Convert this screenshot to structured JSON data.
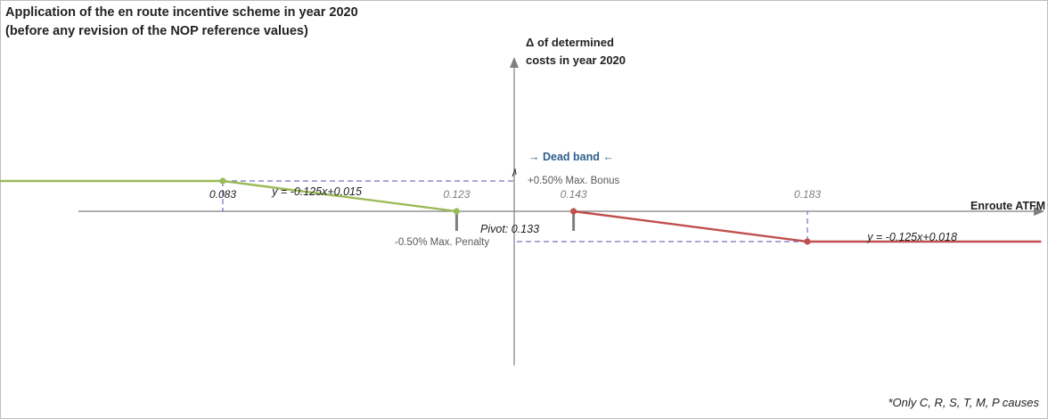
{
  "title": {
    "line1": "Application of the en route incentive scheme in year 2020",
    "line2": "(before any revision of the NOP reference values)"
  },
  "axes": {
    "y_label_line1": "Δ of determined",
    "y_label_line2": "costs in year 2020",
    "x_label": "Enroute ATFM"
  },
  "dead_band_label": "→ Dead band ←",
  "max_bonus_label": "+0.50% Max. Bonus",
  "max_penalty_label": "-0.50% Max. Penalty",
  "pivot_label": "Pivot: 0.133",
  "footnote": "*Only C, R, S, T, M, P causes",
  "colors": {
    "bonus_line": "#9bbb59",
    "penalty_line": "#c0504d",
    "guide": "#7b6fbf",
    "axis": "#7f7f7f",
    "dead_band_text": "#2e5f8a"
  },
  "chart_data": {
    "type": "line",
    "xlabel": "Enroute ATFM",
    "ylabel": "Δ of determined costs in year 2020",
    "ticks": [
      {
        "label": "0.083",
        "x": 0.083
      },
      {
        "label": "0.123",
        "x": 0.123
      },
      {
        "label": "0.143",
        "x": 0.143
      },
      {
        "label": "0.183",
        "x": 0.183
      }
    ],
    "series": [
      {
        "kind": "bonus",
        "color": "#9bbb59",
        "equation": "y = -0.125x+0.015",
        "x": [
          0.043,
          0.083,
          0.123
        ],
        "y": [
          0.005,
          0.005,
          0.0
        ]
      },
      {
        "kind": "penalty",
        "color": "#c0504d",
        "equation": "y = -0.125x+0.018",
        "x": [
          0.143,
          0.183,
          0.223
        ],
        "y": [
          0.0,
          -0.005,
          -0.005
        ]
      }
    ]
  }
}
